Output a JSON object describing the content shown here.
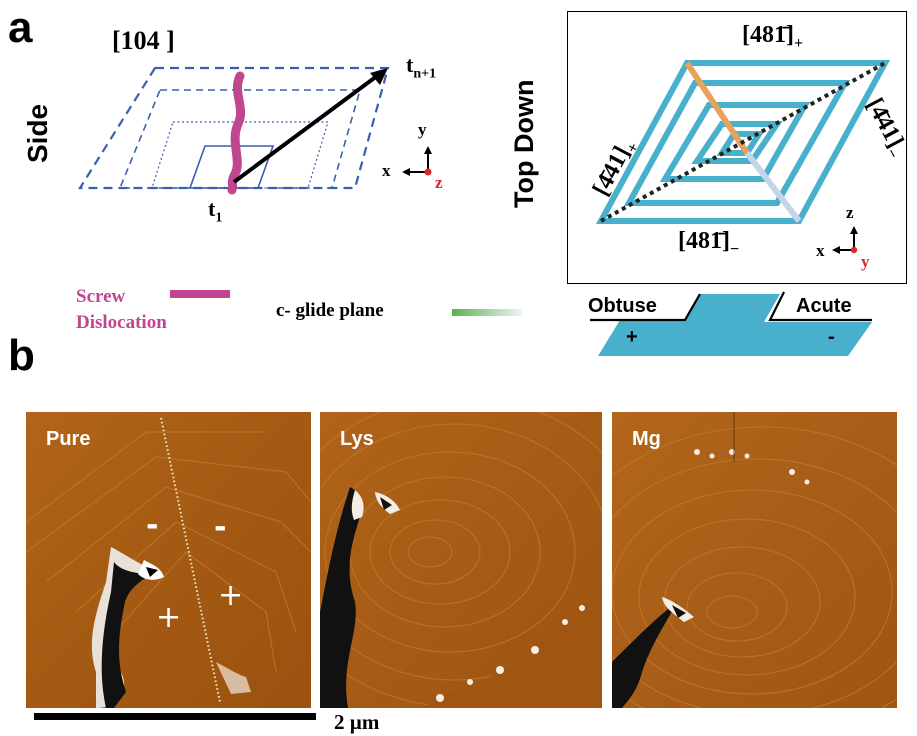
{
  "panel_a": {
    "letter": "a",
    "side": {
      "label": "Side",
      "plane": "[104 ]",
      "t_end": "t",
      "t_end_sub": "n+1",
      "t_start": "t",
      "t_start_sub": "1",
      "axis_y": "y",
      "axis_x": "x",
      "axis_z": "z"
    },
    "top_down": {
      "label": "Top Down",
      "top_index": "[481̄]",
      "top_sign": "+",
      "bottom_index": "[481̄]",
      "bottom_sign": "−",
      "left_index": "[4̄41]",
      "left_sign": "+",
      "right_index": "[4̄41]",
      "right_sign": "−",
      "axis_z": "z",
      "axis_x": "x",
      "axis_y": "y"
    },
    "legend": {
      "screw_line1": "Screw",
      "screw_line2": "Dislocation",
      "glide": "c- glide plane",
      "obtuse": "Obtuse",
      "acute": "Acute",
      "obtuse_sign": "+",
      "acute_sign": "-"
    }
  },
  "panel_b": {
    "letter": "b",
    "images": [
      {
        "label": "Pure"
      },
      {
        "label": "Lys"
      },
      {
        "label": "Mg"
      }
    ],
    "pure_signs": {
      "minus_left": "-",
      "minus_right": "-",
      "plus_left": "+",
      "plus_right": "+"
    },
    "scale_bar": "2 µm"
  },
  "colors": {
    "dashed_blue": "#3a5fb0",
    "screw": "#c0478f",
    "cyan": "#48b0cc",
    "orange": "#e9a25b",
    "afm_brown": "#a45a12"
  }
}
